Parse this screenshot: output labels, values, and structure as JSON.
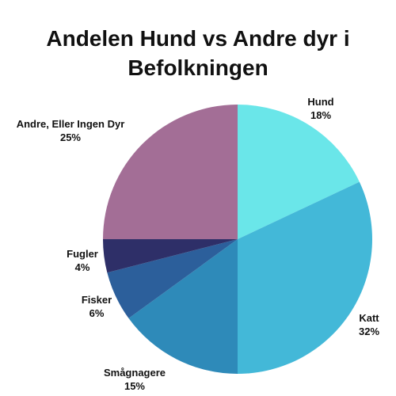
{
  "chart_data": {
    "type": "pie",
    "title": "Andelen Hund vs Andre dyr i Befolkningen",
    "slices": [
      {
        "label": "Hund",
        "value": 18,
        "value_label": "18%",
        "color": "#6ae6e9"
      },
      {
        "label": "Katt",
        "value": 32,
        "value_label": "32%",
        "color": "#43b8d8"
      },
      {
        "label": "Smågnagere",
        "value": 15,
        "value_label": "15%",
        "color": "#2e8ab9"
      },
      {
        "label": "Fisker",
        "value": 6,
        "value_label": "6%",
        "color": "#2c5f9b"
      },
      {
        "label": "Fugler",
        "value": 4,
        "value_label": "4%",
        "color": "#2e2f68"
      },
      {
        "label": "Andre, Eller Ingen Dyr",
        "value": 25,
        "value_label": "25%",
        "color": "#a36e96"
      }
    ],
    "start": "12 o'clock",
    "direction": "clockwise"
  }
}
